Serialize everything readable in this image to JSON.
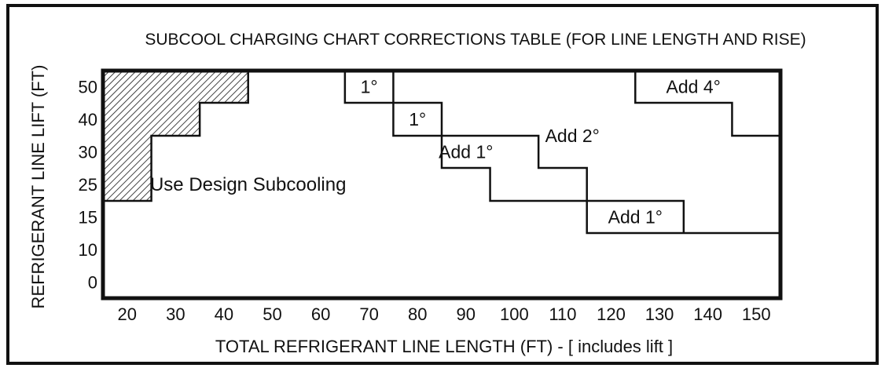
{
  "chart_data": {
    "type": "table",
    "title": "SUBCOOL CHARGING CHART CORRECTIONS TABLE (FOR LINE LENGTH AND RISE)",
    "xlabel": "TOTAL REFRIGERANT LINE LENGTH (FT) - [ includes lift ]",
    "ylabel": "REFRIGERANT LINE LIFT (FT)",
    "x_ticks": [
      20,
      30,
      40,
      50,
      60,
      70,
      80,
      90,
      100,
      110,
      120,
      130,
      140,
      150
    ],
    "y_ticks": [
      "50",
      "40",
      "30",
      "25",
      "15",
      "10",
      "0"
    ],
    "cell_edges": {
      "x": [
        15,
        25,
        35,
        45,
        55,
        65,
        75,
        85,
        95,
        105,
        115,
        125,
        135,
        145,
        155
      ]
    },
    "excluded_region": [
      {
        "x": [
          15,
          45
        ],
        "row_from": 0,
        "row_to": 0
      },
      {
        "x": [
          15,
          35
        ],
        "row_from": 1,
        "row_to": 1
      },
      {
        "x": [
          15,
          25
        ],
        "row_from": 2,
        "row_to": 3
      }
    ],
    "boundaries": [
      {
        "name": "design_to_1",
        "points": [
          [
            65,
            0
          ],
          [
            65,
            1
          ],
          [
            75,
            1
          ],
          [
            75,
            2
          ],
          [
            85,
            2
          ],
          [
            85,
            3
          ],
          [
            95,
            3
          ],
          [
            95,
            4
          ],
          [
            115,
            4
          ],
          [
            115,
            5
          ],
          [
            155,
            5
          ]
        ]
      },
      {
        "name": "1_to_2",
        "points": [
          [
            75,
            0
          ],
          [
            75,
            1
          ],
          [
            85,
            1
          ],
          [
            85,
            2
          ],
          [
            105,
            2
          ],
          [
            105,
            3
          ],
          [
            115,
            3
          ],
          [
            115,
            4
          ],
          [
            135,
            4
          ],
          [
            135,
            5
          ]
        ]
      },
      {
        "name": "2_to_4",
        "points": [
          [
            125,
            0
          ],
          [
            125,
            1
          ],
          [
            145,
            1
          ],
          [
            145,
            2
          ],
          [
            155,
            2
          ]
        ]
      }
    ],
    "regions": [
      {
        "label": "Use Design Subcooling",
        "x": 45,
        "row": 3
      },
      {
        "label": "1°",
        "x": 70,
        "row": 0
      },
      {
        "label": "1°",
        "x": 80,
        "row": 1
      },
      {
        "label": "Add 1°",
        "x": 90,
        "row": 2
      },
      {
        "label": "Add 2°",
        "x": 112,
        "row": 1.5
      },
      {
        "label": "Add 4°",
        "x": 137,
        "row": 0
      },
      {
        "label": "Add 1°",
        "x": 125,
        "row": 4
      }
    ]
  }
}
